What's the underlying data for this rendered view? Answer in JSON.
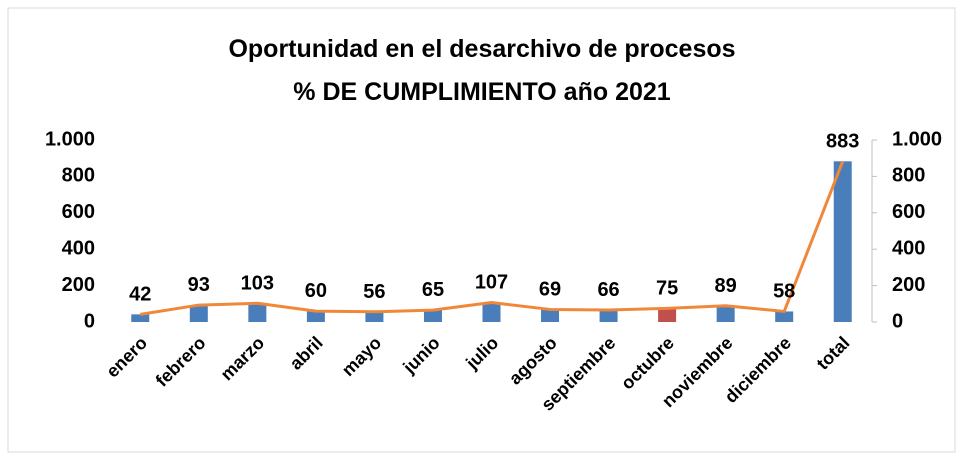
{
  "chart_data": {
    "type": "bar+line",
    "title": [
      "Oportunidad en el desarchivo de procesos",
      "% DE CUMPLIMIENTO año 2021"
    ],
    "categories": [
      "enero",
      "febrero",
      "marzo",
      "abril",
      "mayo",
      "junio",
      "julio",
      "agosto",
      "septiembre",
      "octubre",
      "noviembre",
      "diciembre",
      "total"
    ],
    "series": [
      {
        "type": "bar",
        "values": [
          42,
          93,
          103,
          60,
          56,
          65,
          107,
          69,
          66,
          75,
          89,
          58,
          883
        ],
        "colors": [
          "#4a7ebb",
          "#4a7ebb",
          "#4a7ebb",
          "#4a7ebb",
          "#4a7ebb",
          "#4a7ebb",
          "#4a7ebb",
          "#4a7ebb",
          "#4a7ebb",
          "#c0504d",
          "#4a7ebb",
          "#4a7ebb",
          "#4a7ebb"
        ]
      },
      {
        "type": "line",
        "axis": "y2",
        "color": "#f0883a",
        "values": [
          42,
          93,
          103,
          60,
          56,
          65,
          107,
          69,
          66,
          75,
          89,
          58,
          883
        ]
      }
    ],
    "ylim": [
      0,
      1000
    ],
    "yticks": [
      0,
      200,
      400,
      600,
      800,
      {
        "value": 1000,
        "label": "1.000"
      }
    ],
    "y2lim": [
      0,
      1000
    ],
    "y2ticks": [
      0,
      200,
      400,
      600,
      800,
      {
        "value": 1000,
        "label": "1.000"
      }
    ]
  }
}
